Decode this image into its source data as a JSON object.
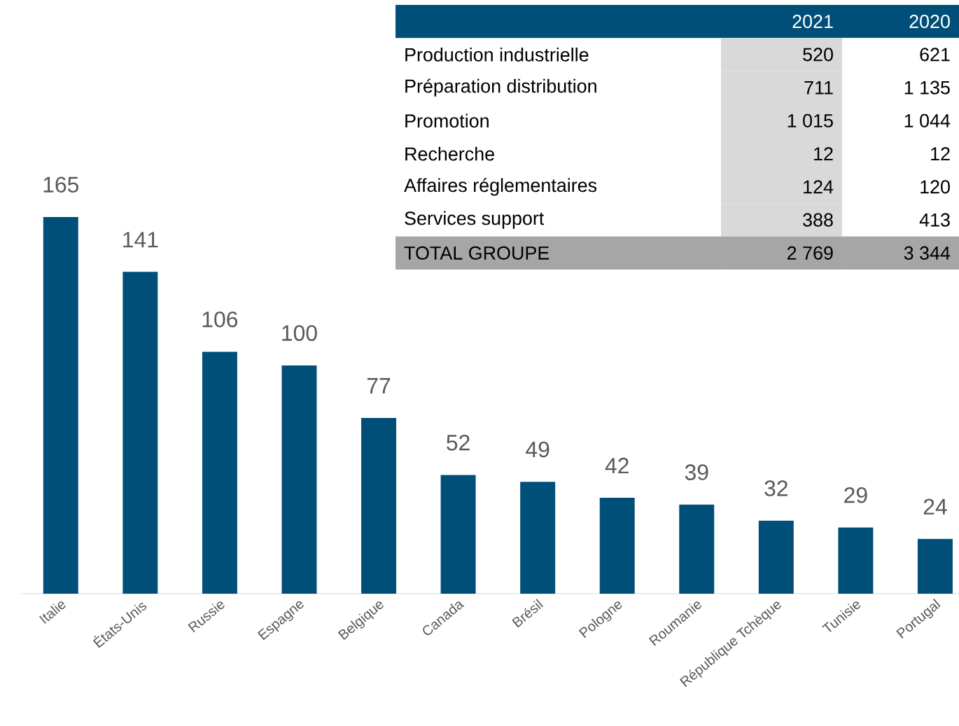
{
  "chart_data": [
    {
      "type": "bar",
      "categories": [
        "Italie",
        "États-Unis",
        "Russie",
        "Espagne",
        "Belgique",
        "Canada",
        "Brésil",
        "Pologne",
        "Roumanie",
        "République Tchèque",
        "Tunisie",
        "Portugal"
      ],
      "values": [
        165,
        141,
        106,
        100,
        77,
        52,
        49,
        42,
        39,
        32,
        29,
        24
      ],
      "color": "#004f78",
      "data_labels": true
    },
    {
      "type": "other",
      "categories": [
        "Production industrielle",
        "Préparation distribution",
        "Promotion",
        "Recherche",
        "Affaires réglementaires",
        "Services support",
        "TOTAL GROUPE"
      ],
      "series": [
        {
          "name": "2021",
          "colors": [
            "#d9d9d9",
            "#d9d9d9",
            "#d9d9d9",
            "#d9d9d9",
            "#d9d9d9",
            "#d9d9d9",
            "#a6a6a6"
          ],
          "values": [
            520,
            711,
            1015,
            12,
            124,
            388,
            2769
          ],
          "value_labels": [
            "520",
            "711",
            "1 015",
            "12",
            "124",
            "388",
            "2 769"
          ]
        },
        {
          "name": "2020",
          "colors": [
            "#ffffff",
            "#ffffff",
            "#ffffff",
            "#ffffff",
            "#ffffff",
            "#ffffff",
            "#a6a6a6"
          ],
          "values": [
            621,
            1135,
            1044,
            12,
            120,
            413,
            3344
          ],
          "value_labels": [
            "621",
            "1 135",
            "1 044",
            "12",
            "120",
            "413",
            "3 344"
          ]
        }
      ]
    }
  ]
}
